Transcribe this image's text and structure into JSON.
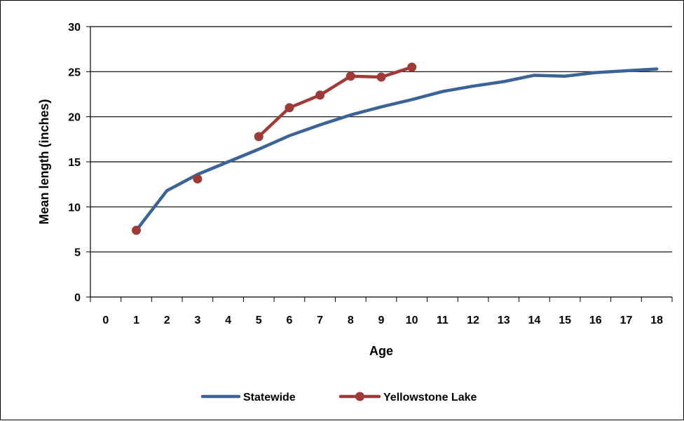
{
  "chart_data": {
    "type": "line",
    "title": "",
    "xlabel": "Age",
    "ylabel": "Mean length (inches)",
    "categories": [
      "0",
      "1",
      "2",
      "3",
      "4",
      "5",
      "6",
      "7",
      "8",
      "9",
      "10",
      "11",
      "12",
      "13",
      "14",
      "15",
      "16",
      "17",
      "18"
    ],
    "ylim": [
      0,
      30
    ],
    "yticks": [
      "0",
      "5",
      "10",
      "15",
      "20",
      "25",
      "30"
    ],
    "grid": "horizontal",
    "legend": "bottom",
    "series": [
      {
        "name": "Statewide",
        "color": "#3b6397",
        "marker": "none",
        "x": [
          1,
          2,
          3,
          4,
          5,
          6,
          7,
          8,
          9,
          10,
          11,
          12,
          13,
          14,
          15,
          16,
          17,
          18
        ],
        "values": [
          7.4,
          11.8,
          13.6,
          15.0,
          16.4,
          17.9,
          19.1,
          20.2,
          21.1,
          21.9,
          22.8,
          23.4,
          23.9,
          24.6,
          24.5,
          24.9,
          25.1,
          25.3
        ]
      },
      {
        "name": "Yellowstone Lake",
        "color": "#a03a37",
        "marker": "circle",
        "x": [
          1,
          3,
          5,
          6,
          7,
          8,
          9,
          10
        ],
        "values": [
          7.4,
          13.1,
          17.8,
          21.0,
          22.4,
          24.5,
          24.4,
          25.5
        ],
        "segments": [
          [
            0
          ],
          [
            1
          ],
          [
            2,
            3,
            4,
            5,
            6,
            7
          ]
        ]
      }
    ]
  }
}
